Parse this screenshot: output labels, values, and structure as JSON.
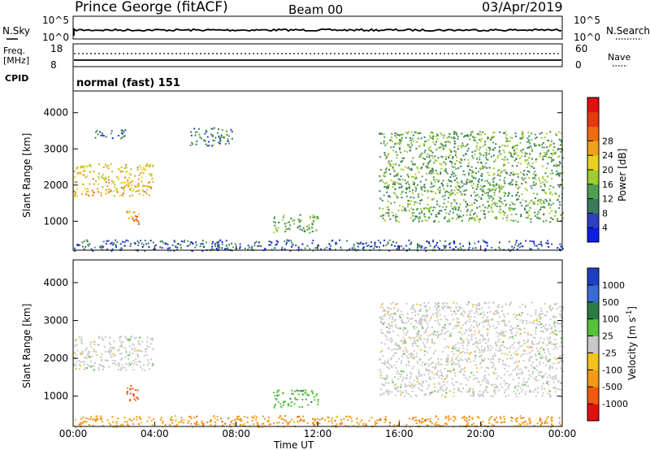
{
  "header": {
    "title": "Prince George (fitACF)",
    "beam": "Beam 00",
    "date": "03/Apr/2019"
  },
  "ancillary": {
    "nsky_label": "N.Sky",
    "nsearch_label": "N.Search",
    "noise_ticks": [
      "10^5",
      "10^0"
    ],
    "freq_label": "Freq.",
    "freq_unit": "[MHz]",
    "freq_ticks": [
      "18",
      "8"
    ],
    "nave_label": "Nave",
    "nave_ticks": [
      "60",
      "0"
    ],
    "cpid_label": "CPID",
    "cpid_value": "normal (fast) 151"
  },
  "chart_data": [
    {
      "type": "heatmap",
      "panel": "power",
      "ylabel": "Slant Range [km]",
      "yticks": [
        1000,
        2000,
        3000,
        4000
      ],
      "ylim": [
        200,
        4600
      ],
      "xlim": [
        0,
        24
      ],
      "colorbar": {
        "label": "Power [dB]",
        "range": [
          0,
          30
        ],
        "ticks": [
          "4",
          "8",
          "12",
          "16",
          "20",
          "24",
          "28"
        ],
        "colors": [
          "#0a1ee6",
          "#2e3fbf",
          "#3c7a5e",
          "#4f9e53",
          "#9fcc2e",
          "#e6d21e",
          "#f0a21c",
          "#ee6c14",
          "#e33a12",
          "#e01010"
        ]
      },
      "echo_regions": [
        {
          "t_start": 0.0,
          "t_end": 3.9,
          "r_start": 1700,
          "r_end": 2600,
          "power": 18
        },
        {
          "t_start": 2.6,
          "t_end": 3.2,
          "r_start": 900,
          "r_end": 1300,
          "power": 22
        },
        {
          "t_start": 1.0,
          "t_end": 2.6,
          "r_start": 3300,
          "r_end": 3550,
          "power": 6
        },
        {
          "t_start": 5.7,
          "t_end": 7.8,
          "r_start": 3100,
          "r_end": 3600,
          "power": 7
        },
        {
          "t_start": 9.8,
          "t_end": 12.0,
          "r_start": 700,
          "r_end": 1200,
          "power": 10
        },
        {
          "t_start": 15.0,
          "t_end": 24.0,
          "r_start": 1000,
          "r_end": 3500,
          "power": 10
        },
        {
          "t_start": 0.0,
          "t_end": 24.0,
          "r_start": 200,
          "r_end": 500,
          "power": 5
        }
      ]
    },
    {
      "type": "heatmap",
      "panel": "velocity",
      "ylabel": "Slant Range [km]",
      "xlabel": "Time UT",
      "yticks": [
        1000,
        2000,
        3000,
        4000
      ],
      "ylim": [
        200,
        4600
      ],
      "xlim": [
        0,
        24
      ],
      "xticks": [
        "00:00",
        "04:00",
        "08:00",
        "12:00",
        "16:00",
        "20:00",
        "00:00"
      ],
      "colorbar": {
        "label": "Velocity [m s^-1]",
        "ticks": [
          "1000",
          "500",
          "100",
          "25",
          "-25",
          "-100",
          "-500",
          "-1000"
        ],
        "colors": [
          "#1d3fc2",
          "#3a6ad4",
          "#2c7a46",
          "#56c23a",
          "#c8c8c8",
          "#f3c21e",
          "#f39a18",
          "#ee5a12",
          "#e01010"
        ]
      },
      "echo_regions": [
        {
          "t_start": 0.0,
          "t_end": 3.9,
          "r_start": 1700,
          "r_end": 2600,
          "velocity": 0
        },
        {
          "t_start": 2.6,
          "t_end": 3.2,
          "r_start": 900,
          "r_end": 1300,
          "velocity": -300
        },
        {
          "t_start": 15.0,
          "t_end": 24.0,
          "r_start": 1000,
          "r_end": 3500,
          "velocity": 0
        },
        {
          "t_start": 9.8,
          "t_end": 12.0,
          "r_start": 700,
          "r_end": 1200,
          "velocity": 30
        },
        {
          "t_start": 0.0,
          "t_end": 24.0,
          "r_start": 200,
          "r_end": 500,
          "velocity": -60
        }
      ]
    }
  ]
}
